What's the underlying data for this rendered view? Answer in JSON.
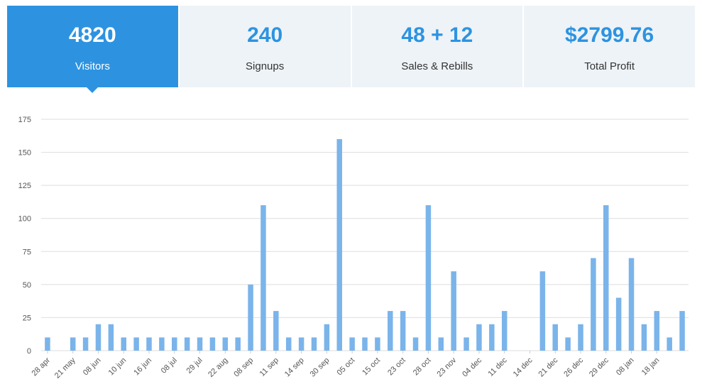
{
  "stats": [
    {
      "value": "4820",
      "label": "Visitors",
      "active": true
    },
    {
      "value": "240",
      "label": "Signups",
      "active": false
    },
    {
      "value": "48 + 12",
      "label": "Sales & Rebills",
      "active": false
    },
    {
      "value": "$2799.76",
      "label": "Total Profit",
      "active": false
    }
  ],
  "colors": {
    "accent": "#2d93e1",
    "tile_bg": "#eef3f7",
    "bar": "#7ab4ea",
    "grid": "#dddddd"
  },
  "chart_data": {
    "type": "bar",
    "title": "",
    "xlabel": "",
    "ylabel": "",
    "ylim": [
      0,
      175
    ],
    "yticks": [
      0,
      25,
      50,
      75,
      100,
      125,
      150,
      175
    ],
    "grid": true,
    "x_tick_labels": [
      "28 apr",
      "21 may",
      "08 jun",
      "10 jun",
      "16 jun",
      "08 jul",
      "29 jul",
      "22 aug",
      "08 sep",
      "11 sep",
      "14 sep",
      "30 sep",
      "05 oct",
      "15 oct",
      "23 oct",
      "28 oct",
      "23 nov",
      "04 dec",
      "11 dec",
      "14 dec",
      "21 dec",
      "26 dec",
      "29 dec",
      "08 jan",
      "18 jan"
    ],
    "values": [
      10,
      0,
      10,
      10,
      20,
      20,
      10,
      10,
      10,
      10,
      10,
      10,
      10,
      10,
      10,
      10,
      50,
      110,
      30,
      10,
      10,
      10,
      20,
      160,
      10,
      10,
      10,
      30,
      30,
      10,
      110,
      10,
      60,
      10,
      20,
      20,
      30,
      0,
      0,
      60,
      20,
      10,
      20,
      70,
      110,
      40,
      70,
      20,
      30,
      10,
      30
    ]
  }
}
